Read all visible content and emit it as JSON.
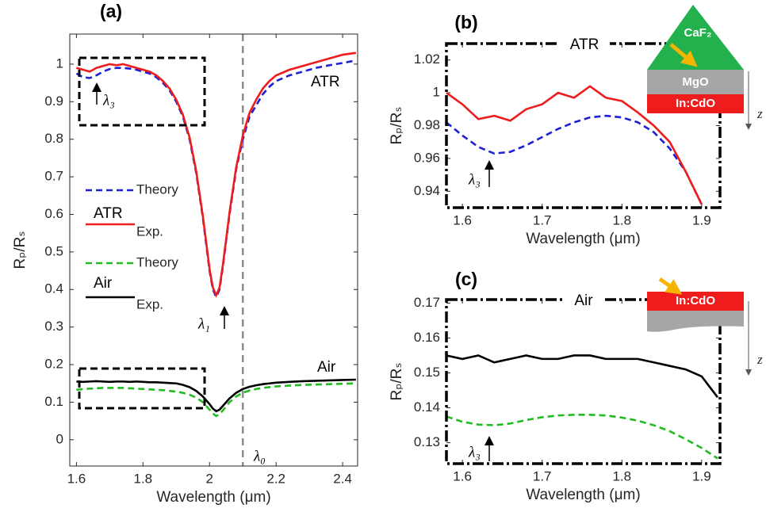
{
  "chart_data": [
    {
      "type": "line",
      "title": "(a)",
      "x_label": "Wavelength (μm)",
      "y_label": "Rₚ/Rₛ",
      "xlim": [
        1.58,
        2.445
      ],
      "ylim": [
        -0.07,
        1.08
      ],
      "xticks": [
        1.6,
        1.8,
        2,
        2.2,
        2.4
      ],
      "yticks": [
        0,
        0.1,
        0.2,
        0.3,
        0.4,
        0.5,
        0.6,
        0.7,
        0.8,
        0.9,
        1
      ],
      "vline": 2.1,
      "x": [
        1.6,
        1.62,
        1.64,
        1.66,
        1.68,
        1.7,
        1.72,
        1.74,
        1.76,
        1.78,
        1.8,
        1.82,
        1.84,
        1.86,
        1.88,
        1.9,
        1.92,
        1.94,
        1.96,
        1.98,
        2.0,
        2.01,
        2.02,
        2.03,
        2.04,
        2.06,
        2.08,
        2.1,
        2.12,
        2.14,
        2.16,
        2.18,
        2.2,
        2.24,
        2.28,
        2.32,
        2.36,
        2.4,
        2.44
      ],
      "series": [
        {
          "name": "Theory",
          "color": "#1f1fd6",
          "linestyle": "dashed",
          "values": [
            0.975,
            0.965,
            0.963,
            0.97,
            0.98,
            0.987,
            0.99,
            0.99,
            0.988,
            0.985,
            0.98,
            0.975,
            0.965,
            0.95,
            0.93,
            0.9,
            0.86,
            0.8,
            0.71,
            0.59,
            0.45,
            0.4,
            0.38,
            0.4,
            0.46,
            0.6,
            0.72,
            0.8,
            0.86,
            0.89,
            0.92,
            0.94,
            0.955,
            0.97,
            0.98,
            0.99,
            0.997,
            1.003,
            1.01
          ]
        },
        {
          "name": "Exp.",
          "color": "#ee1c1c",
          "linestyle": "solid",
          "values": [
            0.99,
            0.985,
            0.98,
            0.99,
            0.995,
            1.0,
            0.997,
            1.0,
            0.995,
            0.99,
            0.985,
            0.98,
            0.97,
            0.955,
            0.935,
            0.905,
            0.865,
            0.805,
            0.715,
            0.595,
            0.455,
            0.405,
            0.385,
            0.405,
            0.465,
            0.605,
            0.725,
            0.81,
            0.87,
            0.905,
            0.935,
            0.955,
            0.97,
            0.985,
            0.995,
            1.005,
            1.015,
            1.025,
            1.03
          ]
        },
        {
          "name": "Theory",
          "color": "#22bb22",
          "linestyle": "dashed",
          "values": [
            0.133,
            0.135,
            0.136,
            0.137,
            0.138,
            0.138,
            0.138,
            0.138,
            0.137,
            0.136,
            0.135,
            0.134,
            0.133,
            0.132,
            0.13,
            0.128,
            0.125,
            0.12,
            0.112,
            0.1,
            0.08,
            0.07,
            0.063,
            0.068,
            0.078,
            0.1,
            0.115,
            0.125,
            0.131,
            0.135,
            0.138,
            0.14,
            0.142,
            0.144,
            0.146,
            0.147,
            0.148,
            0.149,
            0.15
          ]
        },
        {
          "name": "Exp.",
          "color": "#000000",
          "linestyle": "solid",
          "values": [
            0.155,
            0.154,
            0.155,
            0.156,
            0.155,
            0.154,
            0.155,
            0.155,
            0.154,
            0.155,
            0.154,
            0.153,
            0.153,
            0.152,
            0.151,
            0.15,
            0.146,
            0.14,
            0.13,
            0.115,
            0.095,
            0.083,
            0.076,
            0.08,
            0.09,
            0.11,
            0.125,
            0.135,
            0.141,
            0.145,
            0.148,
            0.15,
            0.152,
            0.154,
            0.156,
            0.157,
            0.158,
            0.159,
            0.16
          ]
        }
      ],
      "legend_groups": [
        "ATR",
        "Air"
      ],
      "annotations": [
        "ATR",
        "Air",
        "λ₃",
        "λ₁",
        "λ₀"
      ]
    },
    {
      "type": "line",
      "title": "(b)",
      "x_label": "Wavelength (μm)",
      "y_label": "Rₚ/Rₛ",
      "xlim": [
        1.58,
        1.923
      ],
      "ylim": [
        0.93,
        1.03
      ],
      "xticks": [
        1.6,
        1.7,
        1.8,
        1.9
      ],
      "yticks": [
        0.94,
        0.96,
        0.98,
        1,
        1.02
      ],
      "x": [
        1.58,
        1.6,
        1.62,
        1.64,
        1.66,
        1.68,
        1.7,
        1.72,
        1.74,
        1.76,
        1.78,
        1.8,
        1.82,
        1.84,
        1.86,
        1.88,
        1.9
      ],
      "series": [
        {
          "color": "#1f1fd6",
          "linestyle": "dashed",
          "values": [
            0.982,
            0.974,
            0.967,
            0.963,
            0.964,
            0.968,
            0.973,
            0.978,
            0.982,
            0.985,
            0.986,
            0.985,
            0.982,
            0.976,
            0.966,
            0.952,
            0.932
          ]
        },
        {
          "color": "#ee1c1c",
          "linestyle": "solid",
          "values": [
            1.0,
            0.993,
            0.984,
            0.986,
            0.983,
            0.99,
            0.993,
            1.0,
            0.997,
            1.004,
            0.997,
            0.995,
            0.988,
            0.98,
            0.97,
            0.952,
            0.932
          ]
        }
      ],
      "annotations": [
        "ATR",
        "λ₃",
        "CaF₂",
        "MgO",
        "In:CdO",
        "z"
      ]
    },
    {
      "type": "line",
      "title": "(c)",
      "x_label": "Wavelength (μm)",
      "y_label": "Rₚ/Rₛ",
      "xlim": [
        1.58,
        1.923
      ],
      "ylim": [
        0.124,
        0.171
      ],
      "xticks": [
        1.6,
        1.7,
        1.8,
        1.9
      ],
      "yticks": [
        0.13,
        0.14,
        0.15,
        0.16,
        0.17
      ],
      "x": [
        1.58,
        1.6,
        1.62,
        1.64,
        1.66,
        1.68,
        1.7,
        1.72,
        1.74,
        1.76,
        1.78,
        1.8,
        1.82,
        1.84,
        1.86,
        1.88,
        1.9,
        1.92
      ],
      "series": [
        {
          "color": "#000000",
          "linestyle": "solid",
          "values": [
            0.155,
            0.154,
            0.155,
            0.153,
            0.154,
            0.155,
            0.154,
            0.154,
            0.155,
            0.155,
            0.154,
            0.154,
            0.154,
            0.153,
            0.152,
            0.151,
            0.149,
            0.143
          ]
        },
        {
          "color": "#22bb22",
          "linestyle": "dashed",
          "values": [
            0.1375,
            0.136,
            0.1352,
            0.135,
            0.1355,
            0.1365,
            0.1373,
            0.1378,
            0.138,
            0.138,
            0.1378,
            0.1372,
            0.1363,
            0.135,
            0.1333,
            0.131,
            0.1285,
            0.1255
          ]
        }
      ],
      "annotations": [
        "Air",
        "λ₃",
        "In:CdO",
        "z"
      ]
    }
  ]
}
